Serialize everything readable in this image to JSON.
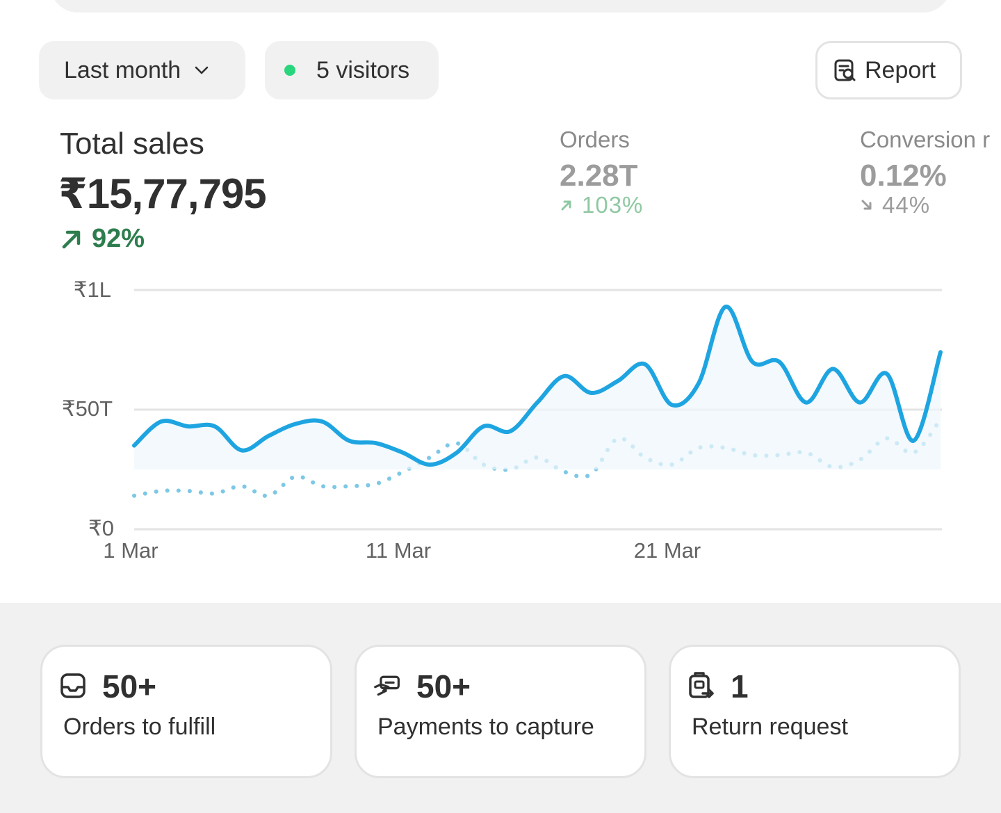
{
  "filters": {
    "period_label": "Last month",
    "visitors_label": "5 visitors",
    "report_label": "Report"
  },
  "summary": {
    "title": "Total sales",
    "value": "₹15,77,795",
    "change": "92%",
    "change_direction": "up",
    "change_color": "#2e7d4e"
  },
  "metrics": [
    {
      "label": "Orders",
      "value": "2.28T",
      "change": "103%",
      "direction": "up",
      "color": "#8fc8a2"
    },
    {
      "label": "Conversion r",
      "value": "0.12%",
      "change": "44%",
      "direction": "down",
      "color": "#9c9c9c"
    }
  ],
  "chart_data": {
    "type": "line",
    "y_ticks": [
      "₹1L",
      "₹50T",
      "₹0"
    ],
    "x_ticks": [
      "1 Mar",
      "11 Mar",
      "21 Mar"
    ],
    "ylim": [
      0,
      100000
    ],
    "x": [
      1,
      2,
      3,
      4,
      5,
      6,
      7,
      8,
      9,
      10,
      11,
      12,
      13,
      14,
      15,
      16,
      17,
      18,
      19,
      20,
      21,
      22,
      23,
      24,
      25,
      26,
      27,
      28,
      29,
      30,
      31
    ],
    "series": [
      {
        "style": "solid",
        "color": "#1ea5e1",
        "values": [
          35000,
          45000,
          43000,
          43000,
          33000,
          39000,
          44000,
          45000,
          37000,
          36000,
          32000,
          27000,
          32000,
          43000,
          41000,
          53000,
          64000,
          57000,
          62000,
          69000,
          52000,
          61000,
          93000,
          70000,
          70000,
          53000,
          67000,
          53000,
          65000,
          37000,
          74000
        ]
      },
      {
        "style": "dotted",
        "color": "#7cc8e6",
        "values": [
          14000,
          16000,
          16000,
          15000,
          18000,
          14000,
          22000,
          18000,
          18000,
          19000,
          24000,
          30000,
          36000,
          27000,
          25000,
          30000,
          24000,
          23000,
          38000,
          30000,
          27000,
          34000,
          34000,
          31000,
          31000,
          32000,
          26000,
          29000,
          38000,
          32000,
          46000
        ]
      }
    ],
    "grid": true
  },
  "tasks": [
    {
      "count": "50+",
      "label": "Orders to fulfill",
      "icon": "inbox-icon"
    },
    {
      "count": "50+",
      "label": "Payments to capture",
      "icon": "cash-icon"
    },
    {
      "count": "1",
      "label": "Return request",
      "icon": "return-icon"
    }
  ]
}
